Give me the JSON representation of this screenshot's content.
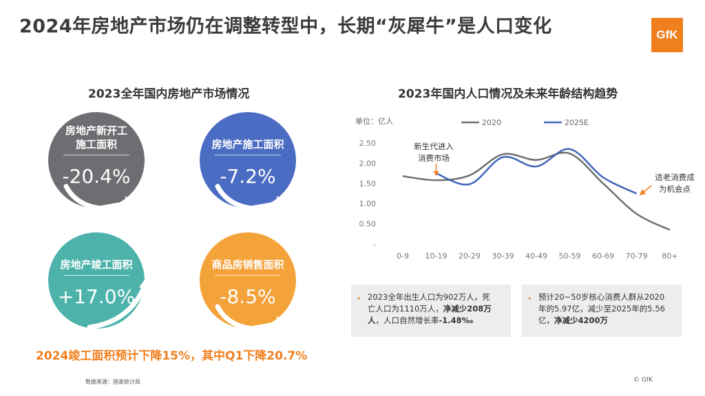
{
  "header": {
    "title": "2024年房地产市场仍在调整转型中，长期“灰犀牛”是人口变化",
    "logo_text": "GfK"
  },
  "left_panel": {
    "subtitle": "2023全年国内房地产市场情况",
    "circles": [
      {
        "title_line1": "房地产新开工",
        "title_line2": "施工面积",
        "value": "-20.4%",
        "color": "#6d6e71"
      },
      {
        "title_line1": "房地产施工面积",
        "title_line2": "",
        "value": "-7.2%",
        "color": "#4a6cc2"
      },
      {
        "title_line1": "房地产竣工面积",
        "title_line2": "",
        "value": "+17.0%",
        "color": "#4db3aa"
      },
      {
        "title_line1": "商品房销售面积",
        "title_line2": "",
        "value": "-8.5%",
        "color": "#f4a23a"
      }
    ],
    "forecast": "2024竣工面积预计下降15%，其中Q1下降20.7%"
  },
  "chart_data": {
    "type": "line",
    "title": "2023年国内人口情况及未来年龄结构趋势",
    "ylabel": "单位：亿人",
    "categories": [
      "0-9",
      "10-19",
      "20-29",
      "30-39",
      "40-49",
      "50-59",
      "60-69",
      "70-79",
      "80+"
    ],
    "y_tick_labels": [
      "-",
      "0.50",
      "1.00",
      "1.50",
      "2.00",
      "2.50"
    ],
    "ylim": [
      0,
      2.5
    ],
    "series": [
      {
        "name": "2020",
        "color": "#6d6e71",
        "values": [
          1.68,
          1.58,
          1.7,
          2.22,
          2.08,
          2.24,
          1.5,
          0.75,
          0.35
        ]
      },
      {
        "name": "2025E",
        "color": "#3f63b8",
        "values": [
          null,
          1.75,
          1.48,
          2.15,
          1.92,
          2.35,
          1.65,
          1.25,
          null
        ]
      }
    ],
    "annotations": [
      {
        "line1": "新生代进入",
        "line2": "消费市场"
      },
      {
        "line1": "适老消费成",
        "line2": "为机会点"
      }
    ]
  },
  "notes": [
    {
      "text1": "2023全年出生人口为902万人，死",
      "text2": "亡人口为1110万人，",
      "bold2": "净减少208万",
      "text3_bold": "人",
      "text3": "，人口自然增长率",
      "bold3": "-1.48‰"
    },
    {
      "text1": "预计20~50岁核心消费人群从2020",
      "text2": "年的5.97亿，减少至2025年的5.56",
      "text3": "亿，",
      "bold3": "净减少4200万"
    }
  ],
  "footer": {
    "source": "数据来源：国家统计局",
    "copyright": "© GfK"
  }
}
